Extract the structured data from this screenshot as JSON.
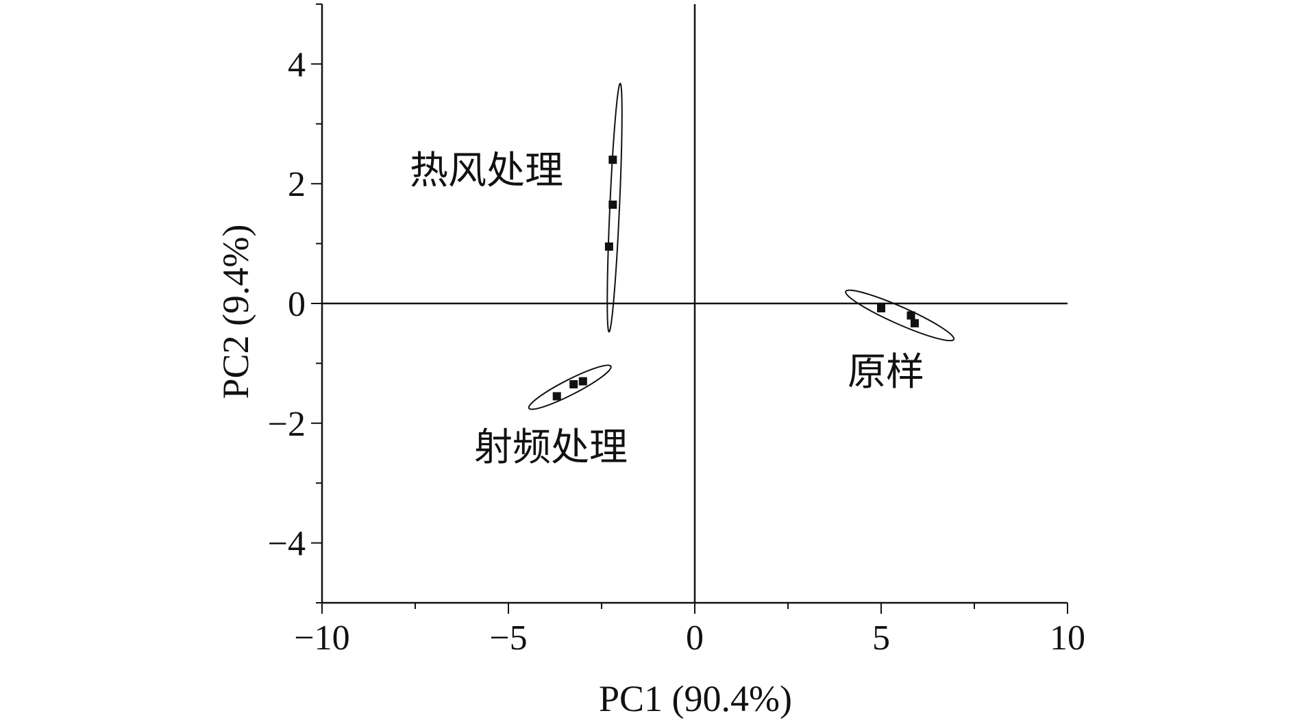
{
  "chart_data": {
    "type": "scatter",
    "title": "",
    "xlabel": "PC1 (90.4%)",
    "ylabel": "PC2 (9.4%)",
    "xlim": [
      -10,
      10
    ],
    "ylim": [
      -5,
      5
    ],
    "x_ticks": [
      -10,
      -5,
      0,
      5,
      10
    ],
    "x_tick_labels": [
      "−10",
      "−5",
      "0",
      "5",
      "10"
    ],
    "y_ticks": [
      -4,
      -2,
      0,
      2,
      4
    ],
    "y_tick_labels": [
      "−4",
      "−2",
      "0",
      "2",
      "4"
    ],
    "grid": false,
    "colors": {
      "ink": "#111111",
      "background": "#ffffff"
    },
    "groups": [
      {
        "label": "热风处理",
        "points": [
          [
            -2.2,
            2.4
          ],
          [
            -2.2,
            1.65
          ],
          [
            -2.3,
            0.95
          ]
        ],
        "ellipse": {
          "center": [
            -2.15,
            1.6
          ],
          "x_extent": [
            -2.35,
            -2.05
          ],
          "y_extent": [
            -0.5,
            3.65
          ]
        }
      },
      {
        "label": "射频处理",
        "points": [
          [
            -3.7,
            -1.55
          ],
          [
            -3.25,
            -1.35
          ],
          [
            -3.0,
            -1.3
          ]
        ],
        "ellipse": {
          "center": [
            -3.35,
            -1.4
          ],
          "x_extent": [
            -4.4,
            -2.2
          ],
          "y_extent": [
            -1.75,
            -1.05
          ]
        }
      },
      {
        "label": "原样",
        "points": [
          [
            5.0,
            -0.08
          ],
          [
            5.8,
            -0.2
          ],
          [
            5.9,
            -0.33
          ]
        ],
        "ellipse": {
          "center": [
            5.5,
            -0.2
          ],
          "x_extent": [
            4.1,
            7.0
          ],
          "y_extent": [
            -0.6,
            0.2
          ]
        }
      }
    ]
  }
}
